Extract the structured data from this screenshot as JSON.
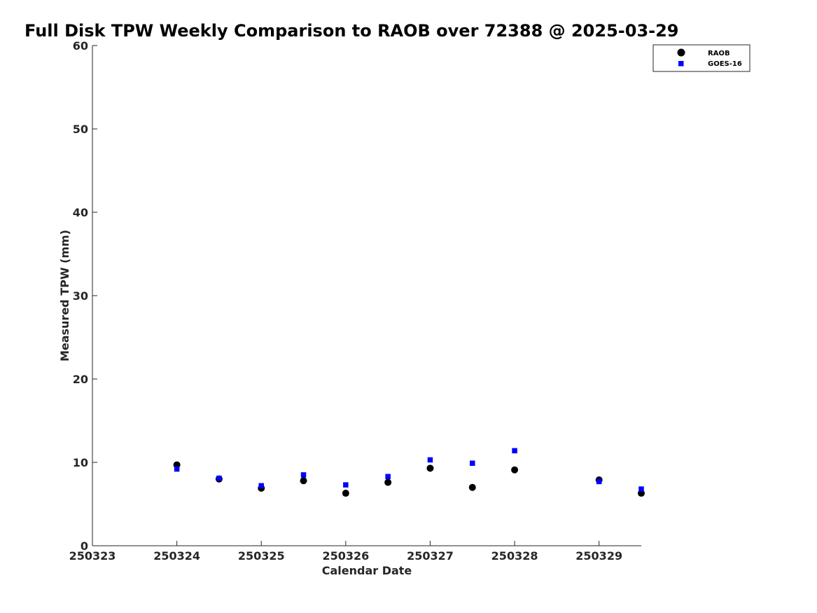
{
  "chart_data": {
    "type": "scatter",
    "title": "Full Disk TPW Weekly Comparison to RAOB over 72388 @ 2025-03-29",
    "xlabel": "Calendar Date",
    "ylabel": "Measured TPW (mm)",
    "xlim": [
      250323,
      250329.5
    ],
    "ylim": [
      0,
      60
    ],
    "x_ticks": [
      250323,
      250324,
      250325,
      250326,
      250327,
      250328,
      250329
    ],
    "x_tick_labels": [
      "250323",
      "250324",
      "250325",
      "250326",
      "250327",
      "250328",
      "250329"
    ],
    "y_ticks": [
      0,
      10,
      20,
      30,
      40,
      50,
      60
    ],
    "y_tick_labels": [
      "0",
      "10",
      "20",
      "30",
      "40",
      "50",
      "60"
    ],
    "grid": false,
    "legend_position": "top-right",
    "series": [
      {
        "name": "RAOB",
        "marker": "circle",
        "color": "#000000",
        "x": [
          250324,
          250324.5,
          250325,
          250325.5,
          250326,
          250326.5,
          250327,
          250327.5,
          250328,
          250329,
          250329.5
        ],
        "y": [
          9.7,
          8.0,
          6.9,
          7.8,
          6.3,
          7.6,
          9.3,
          7.0,
          9.1,
          7.9,
          6.3
        ]
      },
      {
        "name": "GOES-16",
        "marker": "square",
        "color": "#0000ff",
        "x": [
          250324,
          250324.5,
          250325,
          250325.5,
          250326,
          250326.5,
          250327,
          250327.5,
          250328,
          250329,
          250329.5
        ],
        "y": [
          9.2,
          8.1,
          7.2,
          8.5,
          7.3,
          8.3,
          10.3,
          9.9,
          11.4,
          7.7,
          6.8
        ]
      }
    ]
  }
}
